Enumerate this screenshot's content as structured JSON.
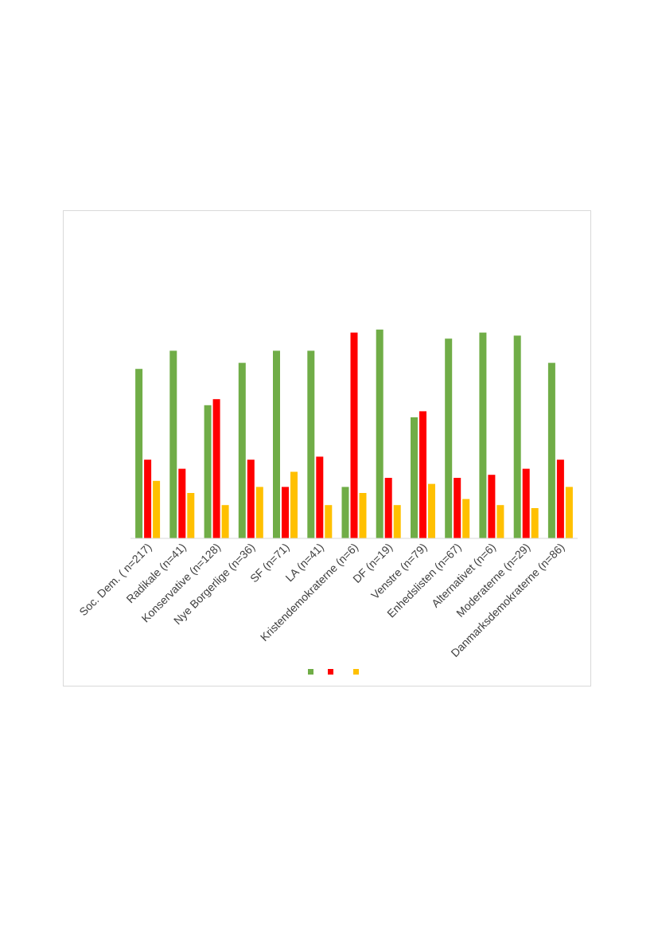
{
  "colors": {
    "series": [
      "#70ad47",
      "#ff0000",
      "#ffc000"
    ],
    "axis": "#d9d9d9",
    "border": "#d9d9d9",
    "text": "#404040"
  },
  "chart_data": {
    "type": "bar",
    "title": "",
    "xlabel": "",
    "ylabel": "",
    "grid": false,
    "legend_position": "bottom",
    "ylim": [
      0,
      0.8
    ],
    "categories": [
      "Soc. Dem. ( n=217)",
      "Radikale (n=41)",
      "Konservative (n=128)",
      "Nye Borgerlige (n=36)",
      "SF (n=71)",
      "LA (n=41)",
      "Kristendemokraterne (n=6)",
      "DF (n=19)",
      "Venstre (n=79)",
      "Enhedslisten (n=67)",
      "Alternativet (n=6)",
      "Moderaterne (n=29)",
      "Danmarksdemokraterne (n=86)"
    ],
    "series": [
      {
        "values": [
          0.56,
          0.62,
          0.44,
          0.58,
          0.62,
          0.62,
          0.17,
          0.69,
          0.4,
          0.66,
          0.68,
          0.67,
          0.58
        ]
      },
      {
        "values": [
          0.26,
          0.23,
          0.46,
          0.26,
          0.17,
          0.27,
          0.68,
          0.2,
          0.42,
          0.2,
          0.21,
          0.23,
          0.26
        ]
      },
      {
        "values": [
          0.19,
          0.15,
          0.11,
          0.17,
          0.22,
          0.11,
          0.15,
          0.11,
          0.18,
          0.13,
          0.11,
          0.1,
          0.17
        ]
      }
    ]
  }
}
